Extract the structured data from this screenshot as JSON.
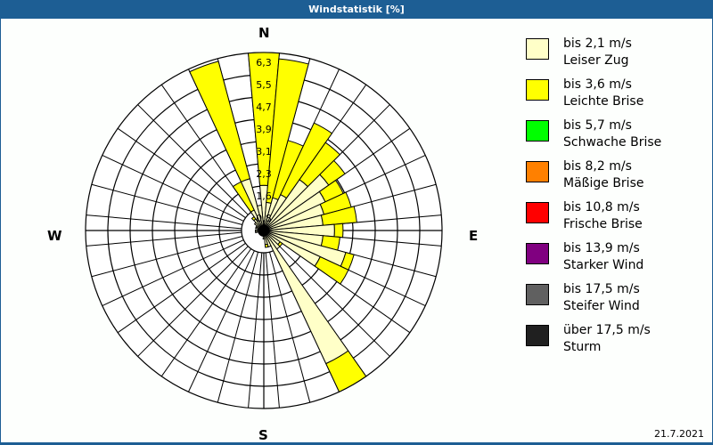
{
  "header": {
    "title": "Windstatistik [%]"
  },
  "compass": {
    "n": "N",
    "e": "E",
    "s": "S",
    "w": "W"
  },
  "footer": {
    "date": "21.7.2021"
  },
  "legend": [
    {
      "range": "bis 2,1 m/s",
      "name": "Leiser Zug",
      "color": "#ffffc8"
    },
    {
      "range": "bis 3,6 m/s",
      "name": "Leichte Brise",
      "color": "#ffff00"
    },
    {
      "range": "bis 5,7 m/s",
      "name": "Schwache Brise",
      "color": "#00ff00"
    },
    {
      "range": "bis 8,2 m/s",
      "name": "Mäßige Brise",
      "color": "#ff8000"
    },
    {
      "range": "bis 10,8 m/s",
      "name": "Frische Brise",
      "color": "#ff0000"
    },
    {
      "range": "bis 13,9 m/s",
      "name": "Starker Wind",
      "color": "#800080"
    },
    {
      "range": "bis 17,5 m/s",
      "name": "Steifer Wind",
      "color": "#606060"
    },
    {
      "range": "über 17,5 m/s",
      "name": "Sturm",
      "color": "#202020"
    }
  ],
  "chart_data": {
    "type": "polar-bar",
    "title": "Windstatistik [%]",
    "unit": "%",
    "radial_ticks": [
      "0,8",
      "1,6",
      "2,3",
      "3,1",
      "3,9",
      "4,7",
      "5,5",
      "6,3"
    ],
    "radial_max": 6.3,
    "sector_width_deg": 10,
    "directions_deg": [
      0,
      10,
      20,
      30,
      40,
      50,
      60,
      70,
      80,
      90,
      100,
      110,
      120,
      130,
      140,
      150,
      160,
      170,
      180,
      190,
      200,
      210,
      220,
      230,
      240,
      250,
      260,
      270,
      280,
      290,
      300,
      310,
      320,
      330,
      340,
      350
    ],
    "series": [
      {
        "name": "bis 2,1 m/s Leiser Zug",
        "color": "#ffffc8",
        "values": [
          1.6,
          1.0,
          1.2,
          1.4,
          2.2,
          2.8,
          2.4,
          2.2,
          2.1,
          2.5,
          2.1,
          3.0,
          2.2,
          0.7,
          0.8,
          5.2,
          0.6,
          0.5,
          0.3,
          0.2,
          0.2,
          0.2,
          0.2,
          0.2,
          0.2,
          0.2,
          0.3,
          0.3,
          0.2,
          0.3,
          0.3,
          0.4,
          0.5,
          0.8,
          1.9,
          0.9
        ]
      },
      {
        "name": "bis 3,6 m/s Leichte Brise",
        "color": "#ffff00",
        "values": [
          4.7,
          5.1,
          2.1,
          2.8,
          1.6,
          0.7,
          0.7,
          1.0,
          1.2,
          0.3,
          0.6,
          0.3,
          1.1,
          0.1,
          0.0,
          1.1,
          0.0,
          0.1,
          0.0,
          0.0,
          0.0,
          0.0,
          0.0,
          0.0,
          0.0,
          0.0,
          0.0,
          0.0,
          0.0,
          0.0,
          0.0,
          0.0,
          0.1,
          1.1,
          4.3,
          0.0
        ]
      },
      {
        "name": "bis 5,7 m/s Schwache Brise",
        "color": "#00ff00",
        "values": [
          0,
          0,
          0,
          0,
          0,
          0,
          0,
          0,
          0,
          0,
          0,
          0,
          0,
          0,
          0,
          0,
          0,
          0,
          0,
          0,
          0,
          0,
          0,
          0,
          0,
          0,
          0,
          0,
          0,
          0,
          0,
          0,
          0,
          0,
          0,
          0
        ]
      }
    ],
    "legend_position": "right",
    "grid": true
  }
}
